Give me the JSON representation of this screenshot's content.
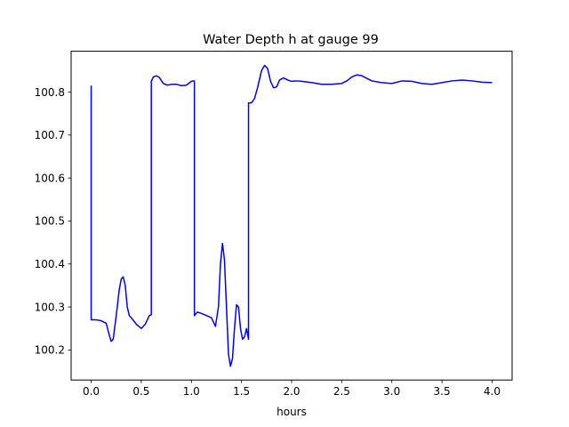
{
  "chart_data": {
    "type": "line",
    "title": "Water Depth h at gauge 99",
    "xlabel": "hours",
    "ylabel": "",
    "xlim": [
      -0.2,
      4.2
    ],
    "ylim": [
      100.13,
      100.895
    ],
    "xticks": [
      0.0,
      0.5,
      1.0,
      1.5,
      2.0,
      2.5,
      3.0,
      3.5,
      4.0
    ],
    "xtick_labels": [
      "0.0",
      "0.5",
      "1.0",
      "1.5",
      "2.0",
      "2.5",
      "3.0",
      "3.5",
      "4.0"
    ],
    "yticks": [
      100.2,
      100.3,
      100.4,
      100.5,
      100.6,
      100.7,
      100.8
    ],
    "ytick_labels": [
      "100.2",
      "100.3",
      "100.4",
      "100.5",
      "100.6",
      "100.7",
      "100.8"
    ],
    "grid": false,
    "legend": "none",
    "series": [
      {
        "color": "#0000ff",
        "x": [
          0.0,
          0.0,
          0.0,
          0.05,
          0.1,
          0.15,
          0.18,
          0.2,
          0.22,
          0.25,
          0.28,
          0.3,
          0.32,
          0.34,
          0.36,
          0.38,
          0.4,
          0.45,
          0.5,
          0.54,
          0.58,
          0.6,
          0.6,
          0.62,
          0.65,
          0.68,
          0.72,
          0.76,
          0.8,
          0.85,
          0.9,
          0.95,
          1.0,
          1.02,
          1.03,
          1.03,
          1.06,
          1.1,
          1.15,
          1.2,
          1.24,
          1.27,
          1.29,
          1.31,
          1.33,
          1.35,
          1.37,
          1.39,
          1.41,
          1.43,
          1.45,
          1.47,
          1.49,
          1.51,
          1.53,
          1.55,
          1.57,
          1.57,
          1.6,
          1.63,
          1.66,
          1.7,
          1.73,
          1.76,
          1.79,
          1.82,
          1.85,
          1.88,
          1.92,
          1.96,
          2.0,
          2.05,
          2.1,
          2.2,
          2.3,
          2.4,
          2.5,
          2.55,
          2.6,
          2.65,
          2.7,
          2.75,
          2.8,
          2.9,
          3.0,
          3.1,
          3.2,
          3.3,
          3.4,
          3.5,
          3.6,
          3.7,
          3.8,
          3.9,
          4.0
        ],
        "y": [
          100.815,
          100.815,
          100.27,
          100.27,
          100.268,
          100.262,
          100.235,
          100.22,
          100.225,
          100.28,
          100.34,
          100.365,
          100.37,
          100.35,
          100.3,
          100.28,
          100.275,
          100.26,
          100.25,
          100.26,
          100.28,
          100.282,
          100.825,
          100.835,
          100.838,
          100.834,
          100.82,
          100.816,
          100.818,
          100.818,
          100.815,
          100.816,
          100.825,
          100.826,
          100.826,
          100.28,
          100.288,
          100.285,
          100.28,
          100.275,
          100.255,
          100.3,
          100.4,
          100.448,
          100.41,
          100.3,
          100.19,
          100.162,
          100.18,
          100.25,
          100.305,
          100.3,
          100.25,
          100.225,
          100.23,
          100.25,
          100.225,
          100.775,
          100.775,
          100.785,
          100.81,
          100.85,
          100.862,
          100.855,
          100.825,
          100.81,
          100.812,
          100.828,
          100.833,
          100.828,
          100.825,
          100.826,
          100.825,
          100.822,
          100.818,
          100.818,
          100.82,
          100.826,
          100.835,
          100.84,
          100.838,
          100.832,
          100.826,
          100.822,
          100.82,
          100.826,
          100.825,
          100.82,
          100.818,
          100.822,
          100.826,
          100.828,
          100.826,
          100.823,
          100.822
        ]
      }
    ]
  }
}
